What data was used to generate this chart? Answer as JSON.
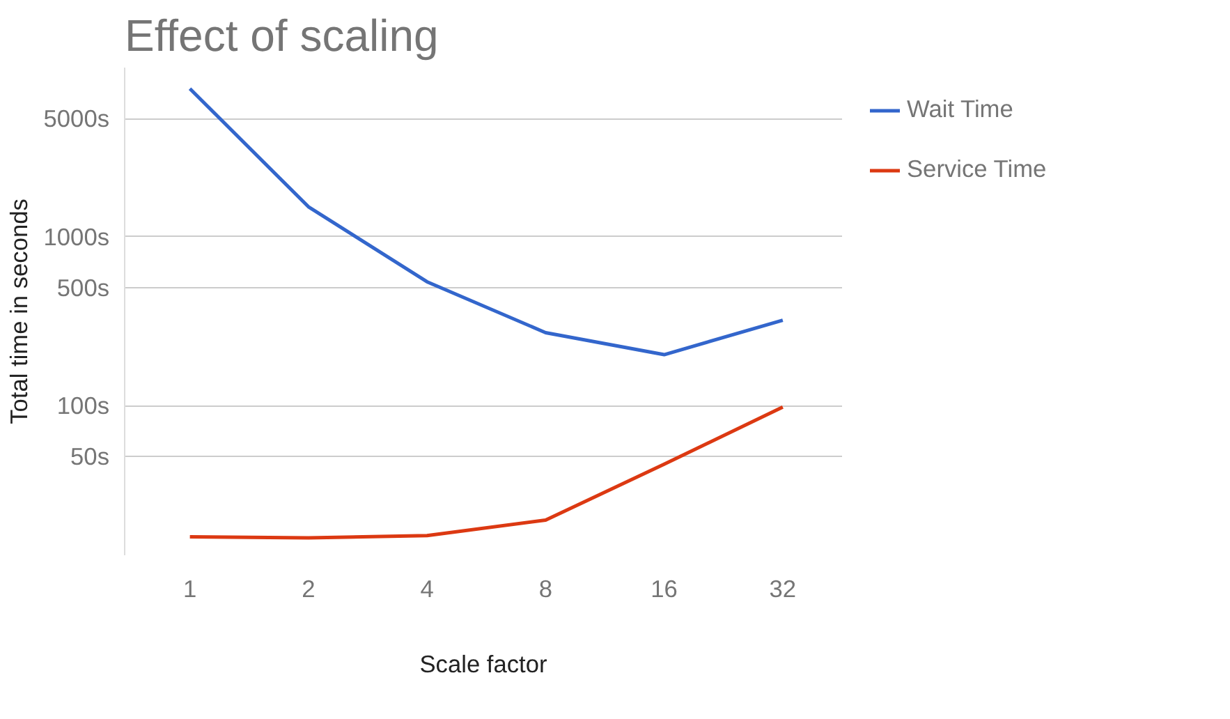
{
  "chart_data": {
    "type": "line",
    "title": "Effect of scaling",
    "xlabel": "Scale factor",
    "ylabel": "Total time in seconds",
    "categories": [
      "1",
      "2",
      "4",
      "8",
      "16",
      "32"
    ],
    "series": [
      {
        "name": "Wait Time",
        "color": "#3366cc",
        "values": [
          7500,
          1500,
          540,
          270,
          200,
          320
        ]
      },
      {
        "name": "Service Time",
        "color": "#dc3912",
        "values": [
          16.7,
          16.5,
          17,
          21,
          45,
          98
        ]
      }
    ],
    "log": "y",
    "ylim": [
      13,
      10000
    ],
    "yticks": [
      {
        "value": 50,
        "label": "50s"
      },
      {
        "value": 100,
        "label": "100s"
      },
      {
        "value": 500,
        "label": "500s"
      },
      {
        "value": 1000,
        "label": "1000s"
      },
      {
        "value": 5000,
        "label": "5000s"
      }
    ],
    "grid": "y",
    "legend": "top right",
    "marker": "none",
    "line_style": "solid"
  }
}
